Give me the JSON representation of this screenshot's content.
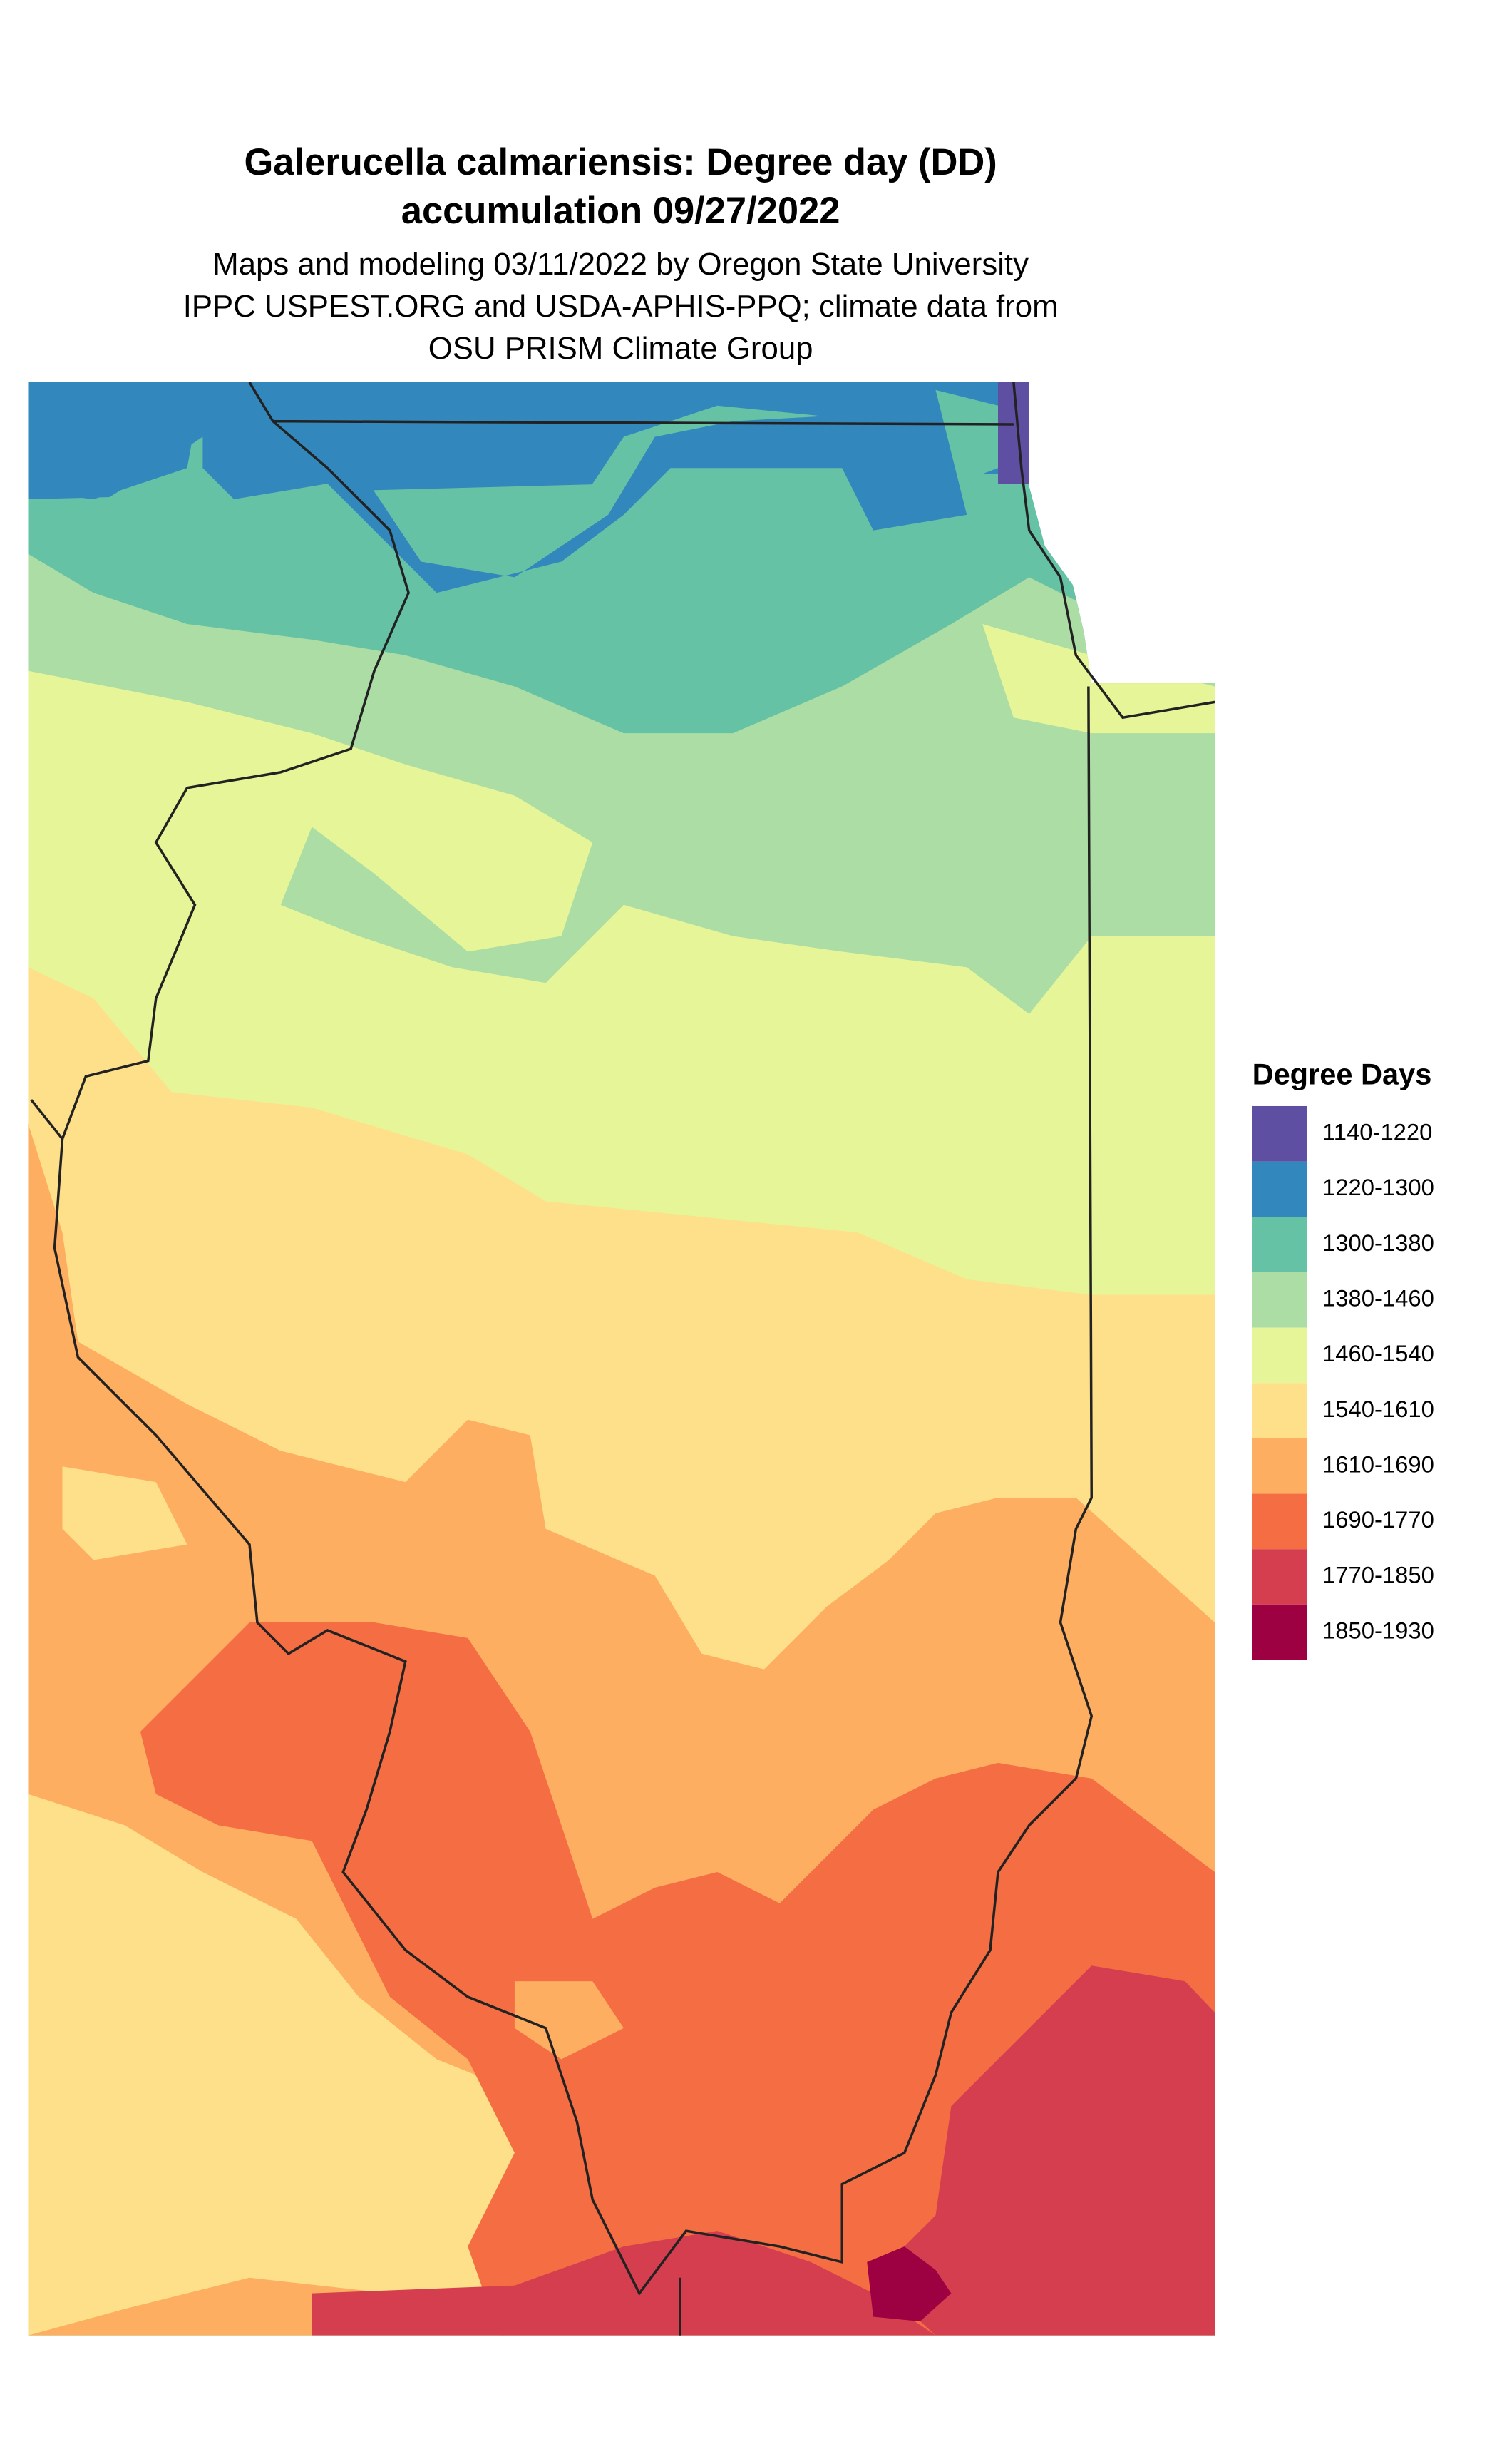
{
  "title": [
    "Galerucella calmariensis: Degree day (DD)",
    "accumulation 09/27/2022"
  ],
  "subtitle": [
    "Maps and modeling 03/11/2022 by Oregon State University",
    "IPPC USPEST.ORG and USDA-APHIS-PPQ; climate data from",
    "OSU PRISM Climate Group"
  ],
  "legend": {
    "title": "Degree Days",
    "items": [
      {
        "label": "1140-1220",
        "color": "#5e4fa2"
      },
      {
        "label": "1220-1300",
        "color": "#3288bd"
      },
      {
        "label": "1300-1380",
        "color": "#66c2a5"
      },
      {
        "label": "1380-1460",
        "color": "#abdda4"
      },
      {
        "label": "1460-1540",
        "color": "#e6f598"
      },
      {
        "label": "1540-1610",
        "color": "#fee08b"
      },
      {
        "label": "1610-1690",
        "color": "#fdae61"
      },
      {
        "label": "1690-1770",
        "color": "#f46d43"
      },
      {
        "label": "1770-1850",
        "color": "#d53e4f"
      },
      {
        "label": "1850-1930",
        "color": "#9e0142"
      }
    ]
  }
}
